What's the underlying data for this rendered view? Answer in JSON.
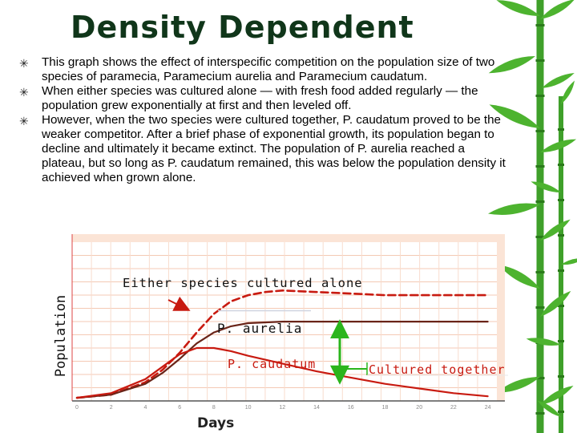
{
  "slide": {
    "title": "Density Dependent",
    "bullets": [
      "This graph shows the effect of interspecific competition on the population size of two species of paramecia, Paramecium aurelia and Paramecium caudatum.",
      "When either species was cultured alone — with fresh food added regularly — the population grew exponentially at first and then leveled off.",
      "However, when the two species were cultured together, P. caudatum proved to be the weaker competitor. After a brief phase of exponential growth, its population began to decline and ultimately it became extinct. The population of P. aurelia reached a plateau, but so long as P. caudatum remained, this was below the population density it achieved when grown alone."
    ],
    "bullet_icon": "asterisk-bullet-icon"
  },
  "colors": {
    "title": "#10361a",
    "caudatum": "#c81a10",
    "aurelia": "#6a2418",
    "arrow_green": "#2bb51c",
    "plot_background": "#fbe4d6",
    "bamboo": "#3fa02a"
  },
  "chart_data": {
    "type": "line",
    "xlabel": "Days",
    "ylabel": "Population",
    "x_ticks": [
      "0",
      "2",
      "4",
      "6",
      "8",
      "10",
      "12",
      "14",
      "16",
      "18",
      "20",
      "22",
      "24"
    ],
    "xlim": [
      0,
      25
    ],
    "ylim": [
      0,
      1
    ],
    "y_axis_numeric_labels": false,
    "grid": true,
    "legend": "none",
    "annotations": {
      "alone": "Either species cultured alone",
      "aurelia": "P. aurelia",
      "caudatum": "P. caudatum",
      "together": "Cultured together"
    },
    "series": [
      {
        "key": "alone",
        "style": "dashed",
        "color": "#c81a10",
        "x": [
          0,
          2,
          4,
          5,
          6,
          7,
          8,
          9,
          10,
          11,
          12,
          14,
          16,
          18,
          20,
          22,
          24
        ],
        "y": [
          0.02,
          0.04,
          0.12,
          0.2,
          0.31,
          0.44,
          0.56,
          0.64,
          0.68,
          0.7,
          0.71,
          0.7,
          0.69,
          0.68,
          0.68,
          0.68,
          0.68
        ]
      },
      {
        "key": "aurelia",
        "style": "solid",
        "color": "#6a2418",
        "x": [
          0,
          2,
          4,
          5,
          6,
          7,
          8,
          9,
          10,
          12,
          14,
          16,
          18,
          20,
          22,
          24
        ],
        "y": [
          0.02,
          0.04,
          0.11,
          0.18,
          0.27,
          0.37,
          0.44,
          0.48,
          0.5,
          0.51,
          0.51,
          0.51,
          0.51,
          0.51,
          0.51,
          0.51
        ]
      },
      {
        "key": "caudatum",
        "style": "solid",
        "color": "#c81a10",
        "x": [
          0,
          2,
          4,
          5,
          6,
          7,
          8,
          9,
          10,
          12,
          14,
          16,
          18,
          20,
          22,
          24
        ],
        "y": [
          0.02,
          0.05,
          0.14,
          0.22,
          0.3,
          0.34,
          0.34,
          0.32,
          0.29,
          0.24,
          0.19,
          0.15,
          0.11,
          0.08,
          0.05,
          0.03
        ]
      }
    ]
  }
}
